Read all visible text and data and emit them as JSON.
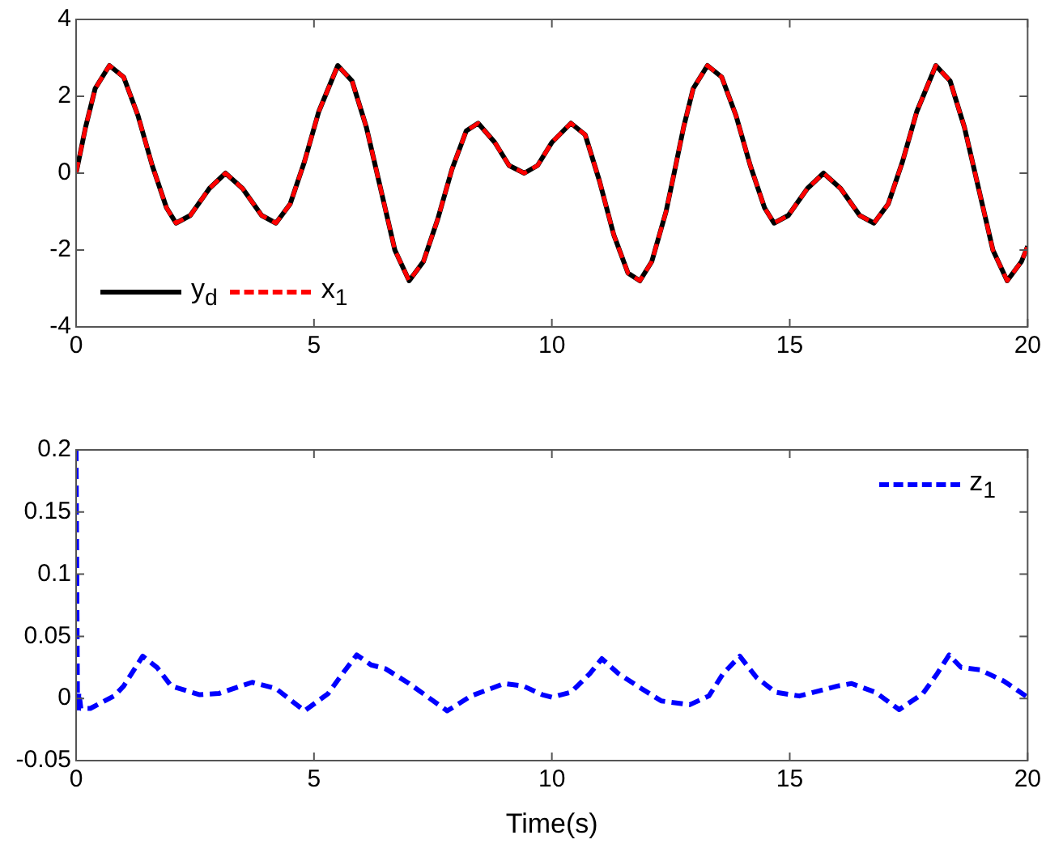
{
  "chart_data": [
    {
      "type": "line",
      "x": [
        0,
        0.2,
        0.4,
        0.7,
        1.0,
        1.3,
        1.6,
        1.9,
        2.1,
        2.4,
        2.8,
        3.14,
        3.5,
        3.9,
        4.2,
        4.5,
        4.8,
        5.1,
        5.5,
        5.8,
        6.1,
        6.4,
        6.7,
        7.0,
        7.3,
        7.6,
        7.9,
        8.2,
        8.45,
        8.8,
        9.1,
        9.42,
        9.7,
        10.0,
        10.4,
        10.7,
        11.0,
        11.3,
        11.6,
        11.85,
        12.1,
        12.4,
        12.57,
        12.77,
        12.97,
        13.27,
        13.57,
        13.87,
        14.17,
        14.47,
        14.67,
        14.97,
        15.37,
        15.71,
        16.07,
        16.47,
        16.77,
        17.07,
        17.37,
        17.67,
        18.07,
        18.37,
        18.67,
        18.97,
        19.27,
        19.57,
        19.87,
        20
      ],
      "xlim": [
        0,
        20
      ],
      "xticks": [
        0,
        5,
        10,
        15,
        20
      ],
      "ylim": [
        -4,
        4
      ],
      "yticks": [
        -4,
        -2,
        0,
        2,
        4
      ],
      "grid": false,
      "legend": "bottom left",
      "marker": "none",
      "series": [
        {
          "name": "y$_{d}$",
          "color": "#000000",
          "line_style": "solid",
          "values": [
            0,
            1.2,
            2.2,
            2.8,
            2.5,
            1.5,
            0.2,
            -0.9,
            -1.3,
            -1.1,
            -0.4,
            0,
            -0.4,
            -1.1,
            -1.3,
            -0.8,
            0.3,
            1.6,
            2.8,
            2.4,
            1.2,
            -0.4,
            -2.0,
            -2.8,
            -2.3,
            -1.2,
            0.1,
            1.1,
            1.3,
            0.8,
            0.2,
            0,
            0.2,
            0.8,
            1.3,
            1.0,
            -0.2,
            -1.6,
            -2.6,
            -2.8,
            -2.3,
            -1.0,
            0,
            1.2,
            2.2,
            2.8,
            2.5,
            1.5,
            0.2,
            -0.9,
            -1.3,
            -1.1,
            -0.4,
            0,
            -0.4,
            -1.1,
            -1.3,
            -0.8,
            0.3,
            1.6,
            2.8,
            2.4,
            1.2,
            -0.4,
            -2.0,
            -2.8,
            -2.3,
            -1.9
          ]
        },
        {
          "name": "x$_{1}$",
          "color": "#ff0000",
          "line_style": "dashed",
          "values": [
            0,
            1.2,
            2.2,
            2.8,
            2.5,
            1.5,
            0.2,
            -0.9,
            -1.3,
            -1.1,
            -0.4,
            0,
            -0.4,
            -1.1,
            -1.3,
            -0.8,
            0.3,
            1.6,
            2.8,
            2.4,
            1.2,
            -0.4,
            -2.0,
            -2.8,
            -2.3,
            -1.2,
            0.1,
            1.1,
            1.3,
            0.8,
            0.2,
            0,
            0.2,
            0.8,
            1.3,
            1.0,
            -0.2,
            -1.6,
            -2.6,
            -2.8,
            -2.3,
            -1.0,
            0,
            1.2,
            2.2,
            2.8,
            2.5,
            1.5,
            0.2,
            -0.9,
            -1.3,
            -1.1,
            -0.4,
            0,
            -0.4,
            -1.1,
            -1.3,
            -0.8,
            0.3,
            1.6,
            2.8,
            2.4,
            1.2,
            -0.4,
            -2.0,
            -2.8,
            -2.3,
            -1.9
          ]
        }
      ]
    },
    {
      "type": "line",
      "xlabel": "Time(s)",
      "xlim": [
        0,
        20
      ],
      "xticks": [
        0,
        5,
        10,
        15,
        20
      ],
      "ylim": [
        -0.05,
        0.2
      ],
      "yticks": [
        -0.05,
        0,
        0.05,
        0.1,
        0.15,
        0.2
      ],
      "grid": false,
      "legend": "top right",
      "marker": "none",
      "x": [
        0,
        0.03,
        0.06,
        0.1,
        0.3,
        0.8,
        1.0,
        1.4,
        1.7,
        2.0,
        2.6,
        3.0,
        3.7,
        4.2,
        4.8,
        5.3,
        5.6,
        5.9,
        6.2,
        6.5,
        7.0,
        7.8,
        8.3,
        9.0,
        9.4,
        9.8,
        10.0,
        10.4,
        10.8,
        11.05,
        11.4,
        11.8,
        12.3,
        12.9,
        13.3,
        13.6,
        13.95,
        14.3,
        14.7,
        15.2,
        16.0,
        16.3,
        16.8,
        17.3,
        17.8,
        18.1,
        18.35,
        18.6,
        19.0,
        19.5,
        20
      ],
      "series": [
        {
          "name": "z$_{1}$",
          "color": "#0000ff",
          "line_style": "dashed",
          "values": [
            0.2,
            -0.01,
            0.005,
            -0.008,
            -0.008,
            0.002,
            0.01,
            0.034,
            0.025,
            0.01,
            0.003,
            0.004,
            0.013,
            0.008,
            -0.01,
            0.004,
            0.02,
            0.035,
            0.027,
            0.024,
            0.012,
            -0.01,
            0.002,
            0.012,
            0.01,
            0.003,
            0.001,
            0.005,
            0.02,
            0.032,
            0.02,
            0.01,
            -0.002,
            -0.005,
            0.002,
            0.02,
            0.034,
            0.017,
            0.005,
            0.002,
            0.01,
            0.012,
            0.005,
            -0.009,
            0.004,
            0.02,
            0.035,
            0.025,
            0.023,
            0.014,
            0.001
          ]
        }
      ]
    }
  ]
}
